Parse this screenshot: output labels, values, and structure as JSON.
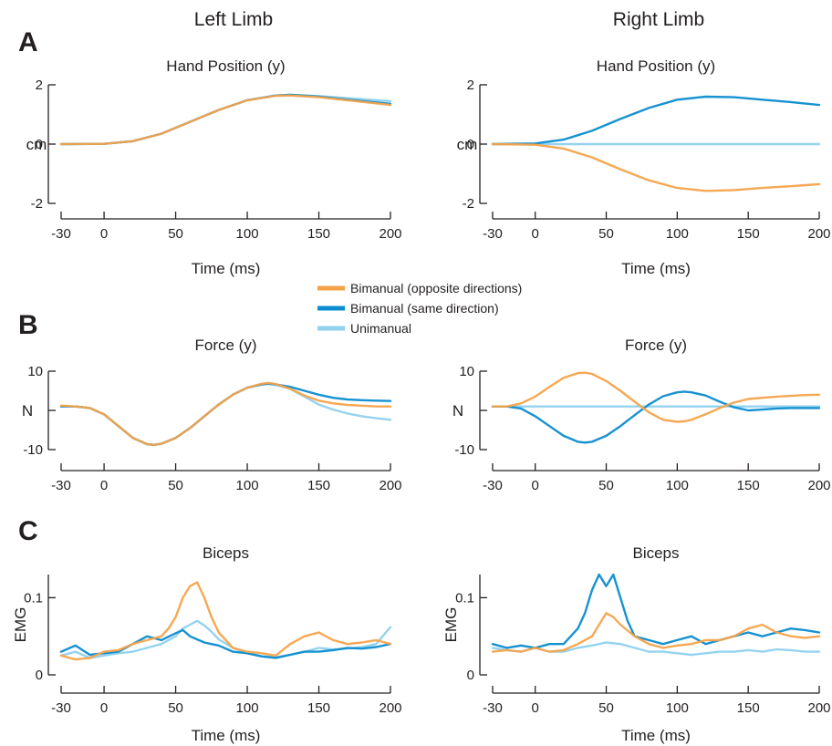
{
  "figure": {
    "col_titles": [
      "Left Limb",
      "Right Limb"
    ],
    "panel_letters": [
      "A",
      "B",
      "C"
    ]
  },
  "legend": [
    {
      "label": "Bimanual (opposite directions)",
      "color": "#f5a34a"
    },
    {
      "label": "Bimanual (same direction)",
      "color": "#0b8ccf"
    },
    {
      "label": "Unimanual",
      "color": "#8fd1ee"
    }
  ],
  "chart_data": [
    {
      "id": "A-left",
      "type": "line",
      "title": "Hand Position (y)",
      "xlabel": "Time (ms)",
      "ylabel": "cm",
      "xlim": [
        -30,
        200
      ],
      "ylim": [
        -2,
        2
      ],
      "xticks": [
        "-30",
        "0",
        "50",
        "100",
        "150",
        "200"
      ],
      "yticks": [
        "2",
        "0",
        "-2"
      ],
      "series": [
        {
          "name": "Unimanual",
          "color": "#8fd1ee",
          "x": [
            -30,
            0,
            20,
            40,
            60,
            80,
            100,
            120,
            130,
            150,
            170,
            200
          ],
          "y": [
            0,
            0.01,
            0.1,
            0.35,
            0.75,
            1.15,
            1.48,
            1.64,
            1.66,
            1.62,
            1.55,
            1.45
          ]
        },
        {
          "name": "Bimanual (same direction)",
          "color": "#0b8ccf",
          "x": [
            -30,
            0,
            20,
            40,
            60,
            80,
            100,
            120,
            130,
            150,
            170,
            200
          ],
          "y": [
            0,
            0.01,
            0.1,
            0.35,
            0.75,
            1.15,
            1.48,
            1.64,
            1.66,
            1.6,
            1.5,
            1.36
          ]
        },
        {
          "name": "Bimanual (opposite directions)",
          "color": "#f5a34a",
          "x": [
            -30,
            0,
            20,
            40,
            60,
            80,
            100,
            120,
            130,
            150,
            170,
            200
          ],
          "y": [
            0,
            0.01,
            0.1,
            0.35,
            0.75,
            1.15,
            1.48,
            1.63,
            1.64,
            1.58,
            1.48,
            1.32
          ]
        }
      ]
    },
    {
      "id": "A-right",
      "type": "line",
      "title": "Hand Position (y)",
      "xlabel": "Time (ms)",
      "ylabel": "cm",
      "xlim": [
        -30,
        200
      ],
      "ylim": [
        -2,
        2
      ],
      "xticks": [
        "-30",
        "0",
        "50",
        "100",
        "150",
        "200"
      ],
      "yticks": [
        "2",
        "0",
        "-2"
      ],
      "series": [
        {
          "name": "Unimanual",
          "color": "#8fd1ee",
          "x": [
            -30,
            200
          ],
          "y": [
            0,
            0
          ]
        },
        {
          "name": "Bimanual (same direction)",
          "color": "#0b8ccf",
          "x": [
            -30,
            0,
            20,
            40,
            60,
            80,
            100,
            120,
            140,
            160,
            180,
            200
          ],
          "y": [
            0,
            0.02,
            0.15,
            0.45,
            0.85,
            1.22,
            1.5,
            1.6,
            1.58,
            1.5,
            1.42,
            1.32
          ]
        },
        {
          "name": "Bimanual (opposite directions)",
          "color": "#f5a34a",
          "x": [
            -30,
            0,
            20,
            40,
            60,
            80,
            100,
            120,
            140,
            160,
            180,
            200
          ],
          "y": [
            0,
            -0.02,
            -0.15,
            -0.45,
            -0.85,
            -1.22,
            -1.48,
            -1.58,
            -1.55,
            -1.48,
            -1.42,
            -1.35
          ]
        }
      ]
    },
    {
      "id": "B-left",
      "type": "line",
      "title": "Force (y)",
      "xlabel": "",
      "ylabel": "N",
      "xlim": [
        -30,
        200
      ],
      "ylim": [
        -10,
        10
      ],
      "xticks": [
        "-30",
        "0",
        "50",
        "100",
        "150",
        "200"
      ],
      "yticks": [
        "10",
        "",
        "-10"
      ],
      "series": [
        {
          "name": "Unimanual",
          "color": "#8fd1ee",
          "x": [
            -30,
            -20,
            -10,
            0,
            10,
            20,
            30,
            35,
            40,
            50,
            60,
            70,
            80,
            90,
            100,
            110,
            115,
            120,
            130,
            140,
            150,
            160,
            170,
            180,
            190,
            200
          ],
          "y": [
            1,
            1,
            0.6,
            -1,
            -4,
            -7,
            -8.6,
            -8.8,
            -8.5,
            -7,
            -4.5,
            -1.5,
            1.5,
            4,
            5.8,
            6.6,
            6.8,
            6.5,
            5.5,
            3.5,
            1.5,
            0.2,
            -0.8,
            -1.5,
            -2,
            -2.4
          ]
        },
        {
          "name": "Bimanual (same direction)",
          "color": "#0b8ccf",
          "x": [
            -30,
            -20,
            -10,
            0,
            10,
            20,
            30,
            35,
            40,
            50,
            60,
            70,
            80,
            90,
            100,
            110,
            115,
            120,
            130,
            140,
            150,
            160,
            170,
            180,
            190,
            200
          ],
          "y": [
            1,
            1,
            0.6,
            -1,
            -4,
            -7,
            -8.6,
            -8.8,
            -8.5,
            -7,
            -4.5,
            -1.5,
            1.5,
            4,
            5.8,
            6.6,
            6.8,
            6.6,
            6,
            5,
            4,
            3.2,
            2.8,
            2.6,
            2.5,
            2.4
          ]
        },
        {
          "name": "Bimanual (opposite directions)",
          "color": "#f5a34a",
          "x": [
            -30,
            -20,
            -10,
            0,
            10,
            20,
            30,
            35,
            40,
            50,
            60,
            70,
            80,
            90,
            100,
            110,
            115,
            120,
            130,
            140,
            150,
            160,
            170,
            180,
            190,
            200
          ],
          "y": [
            1.2,
            1,
            0.6,
            -1,
            -4,
            -7,
            -8.6,
            -8.8,
            -8.5,
            -7,
            -4.5,
            -1.5,
            1.5,
            4,
            5.8,
            6.8,
            7,
            6.7,
            5.5,
            3.8,
            2.5,
            1.8,
            1.4,
            1.2,
            1,
            1
          ]
        }
      ]
    },
    {
      "id": "B-right",
      "type": "line",
      "title": "Force (y)",
      "xlabel": "",
      "ylabel": "N",
      "xlim": [
        -30,
        200
      ],
      "ylim": [
        -10,
        10
      ],
      "xticks": [
        "-30",
        "0",
        "50",
        "100",
        "150",
        "200"
      ],
      "yticks": [
        "10",
        "",
        "-10"
      ],
      "series": [
        {
          "name": "Unimanual",
          "color": "#8fd1ee",
          "x": [
            -30,
            200
          ],
          "y": [
            1,
            1
          ]
        },
        {
          "name": "Bimanual (same direction)",
          "color": "#0b8ccf",
          "x": [
            -30,
            -20,
            -10,
            0,
            10,
            20,
            30,
            35,
            40,
            50,
            60,
            70,
            80,
            90,
            100,
            105,
            110,
            120,
            130,
            140,
            150,
            160,
            170,
            180,
            190,
            200
          ],
          "y": [
            1,
            1,
            0.5,
            -1.5,
            -4,
            -6.5,
            -8,
            -8.2,
            -8,
            -6.5,
            -4,
            -1.2,
            1.5,
            3.6,
            4.6,
            4.8,
            4.6,
            3.8,
            2.2,
            0.8,
            0,
            0.2,
            0.5,
            0.6,
            0.6,
            0.6
          ]
        },
        {
          "name": "Bimanual (opposite directions)",
          "color": "#f5a34a",
          "x": [
            -30,
            -20,
            -10,
            0,
            10,
            20,
            30,
            35,
            40,
            50,
            60,
            70,
            80,
            90,
            100,
            105,
            110,
            120,
            130,
            140,
            150,
            160,
            170,
            180,
            190,
            200
          ],
          "y": [
            1,
            1,
            1.8,
            3.5,
            6,
            8.3,
            9.5,
            9.6,
            9.3,
            7.5,
            5,
            2.2,
            -0.5,
            -2.4,
            -2.9,
            -2.8,
            -2.4,
            -1,
            0.6,
            2,
            2.9,
            3.2,
            3.5,
            3.7,
            3.9,
            4
          ]
        }
      ]
    },
    {
      "id": "C-left",
      "type": "line",
      "title": "Biceps",
      "xlabel": "Time (ms)",
      "ylabel": "EMG",
      "xlim": [
        -30,
        200
      ],
      "ylim": [
        0,
        0.13
      ],
      "xticks": [
        "-30",
        "0",
        "50",
        "100",
        "150",
        "200"
      ],
      "yticks": [
        "0.1",
        "0"
      ],
      "series": [
        {
          "name": "Unimanual",
          "color": "#8fd1ee",
          "x": [
            -30,
            -20,
            -10,
            0,
            10,
            20,
            30,
            40,
            50,
            55,
            60,
            65,
            70,
            75,
            80,
            90,
            100,
            110,
            120,
            130,
            140,
            150,
            160,
            170,
            180,
            190,
            200
          ],
          "y": [
            0.025,
            0.03,
            0.022,
            0.025,
            0.028,
            0.03,
            0.035,
            0.04,
            0.05,
            0.06,
            0.065,
            0.07,
            0.064,
            0.056,
            0.046,
            0.035,
            0.028,
            0.024,
            0.023,
            0.026,
            0.03,
            0.035,
            0.033,
            0.034,
            0.036,
            0.04,
            0.062
          ]
        },
        {
          "name": "Bimanual (same direction)",
          "color": "#0b8ccf",
          "x": [
            -30,
            -20,
            -10,
            0,
            10,
            20,
            30,
            40,
            50,
            55,
            60,
            65,
            70,
            75,
            80,
            90,
            100,
            110,
            120,
            130,
            140,
            150,
            160,
            170,
            180,
            190,
            200
          ],
          "y": [
            0.03,
            0.038,
            0.026,
            0.028,
            0.03,
            0.04,
            0.05,
            0.045,
            0.054,
            0.058,
            0.05,
            0.046,
            0.042,
            0.04,
            0.038,
            0.03,
            0.028,
            0.024,
            0.022,
            0.026,
            0.03,
            0.03,
            0.032,
            0.035,
            0.034,
            0.036,
            0.04
          ]
        },
        {
          "name": "Bimanual (opposite directions)",
          "color": "#f5a34a",
          "x": [
            -30,
            -20,
            -10,
            0,
            10,
            20,
            30,
            40,
            45,
            50,
            55,
            60,
            65,
            70,
            75,
            80,
            90,
            100,
            110,
            120,
            130,
            140,
            150,
            160,
            170,
            180,
            190,
            200
          ],
          "y": [
            0.025,
            0.02,
            0.022,
            0.03,
            0.032,
            0.04,
            0.045,
            0.05,
            0.06,
            0.075,
            0.1,
            0.115,
            0.12,
            0.1,
            0.075,
            0.055,
            0.035,
            0.03,
            0.028,
            0.025,
            0.04,
            0.05,
            0.055,
            0.045,
            0.04,
            0.042,
            0.045,
            0.04
          ]
        }
      ]
    },
    {
      "id": "C-right",
      "type": "line",
      "title": "Biceps",
      "xlabel": "Time (ms)",
      "ylabel": "EMG",
      "xlim": [
        -30,
        200
      ],
      "ylim": [
        0,
        0.13
      ],
      "xticks": [
        "-30",
        "0",
        "50",
        "100",
        "150",
        "200"
      ],
      "yticks": [
        "0.1",
        "0"
      ],
      "series": [
        {
          "name": "Unimanual",
          "color": "#8fd1ee",
          "x": [
            -30,
            -20,
            -10,
            0,
            10,
            20,
            30,
            40,
            50,
            60,
            70,
            80,
            90,
            100,
            110,
            120,
            130,
            140,
            150,
            160,
            170,
            180,
            190,
            200
          ],
          "y": [
            0.035,
            0.032,
            0.03,
            0.035,
            0.03,
            0.03,
            0.035,
            0.038,
            0.042,
            0.04,
            0.035,
            0.03,
            0.03,
            0.028,
            0.026,
            0.028,
            0.03,
            0.03,
            0.032,
            0.03,
            0.033,
            0.032,
            0.03,
            0.03
          ]
        },
        {
          "name": "Bimanual (same direction)",
          "color": "#0b8ccf",
          "x": [
            -30,
            -20,
            -10,
            0,
            10,
            20,
            30,
            35,
            40,
            45,
            50,
            55,
            60,
            65,
            70,
            80,
            90,
            100,
            110,
            120,
            130,
            140,
            150,
            160,
            170,
            180,
            190,
            200
          ],
          "y": [
            0.04,
            0.035,
            0.038,
            0.035,
            0.04,
            0.04,
            0.06,
            0.08,
            0.11,
            0.13,
            0.115,
            0.13,
            0.1,
            0.07,
            0.05,
            0.045,
            0.04,
            0.045,
            0.05,
            0.04,
            0.045,
            0.05,
            0.055,
            0.05,
            0.055,
            0.06,
            0.058,
            0.055
          ]
        },
        {
          "name": "Bimanual (opposite directions)",
          "color": "#f5a34a",
          "x": [
            -30,
            -20,
            -10,
            0,
            10,
            20,
            30,
            40,
            45,
            50,
            55,
            60,
            70,
            80,
            90,
            100,
            110,
            120,
            130,
            140,
            150,
            160,
            170,
            180,
            190,
            200
          ],
          "y": [
            0.03,
            0.032,
            0.03,
            0.035,
            0.03,
            0.032,
            0.04,
            0.05,
            0.065,
            0.08,
            0.075,
            0.065,
            0.05,
            0.04,
            0.035,
            0.038,
            0.04,
            0.045,
            0.045,
            0.05,
            0.06,
            0.065,
            0.055,
            0.05,
            0.048,
            0.05
          ]
        }
      ]
    }
  ]
}
